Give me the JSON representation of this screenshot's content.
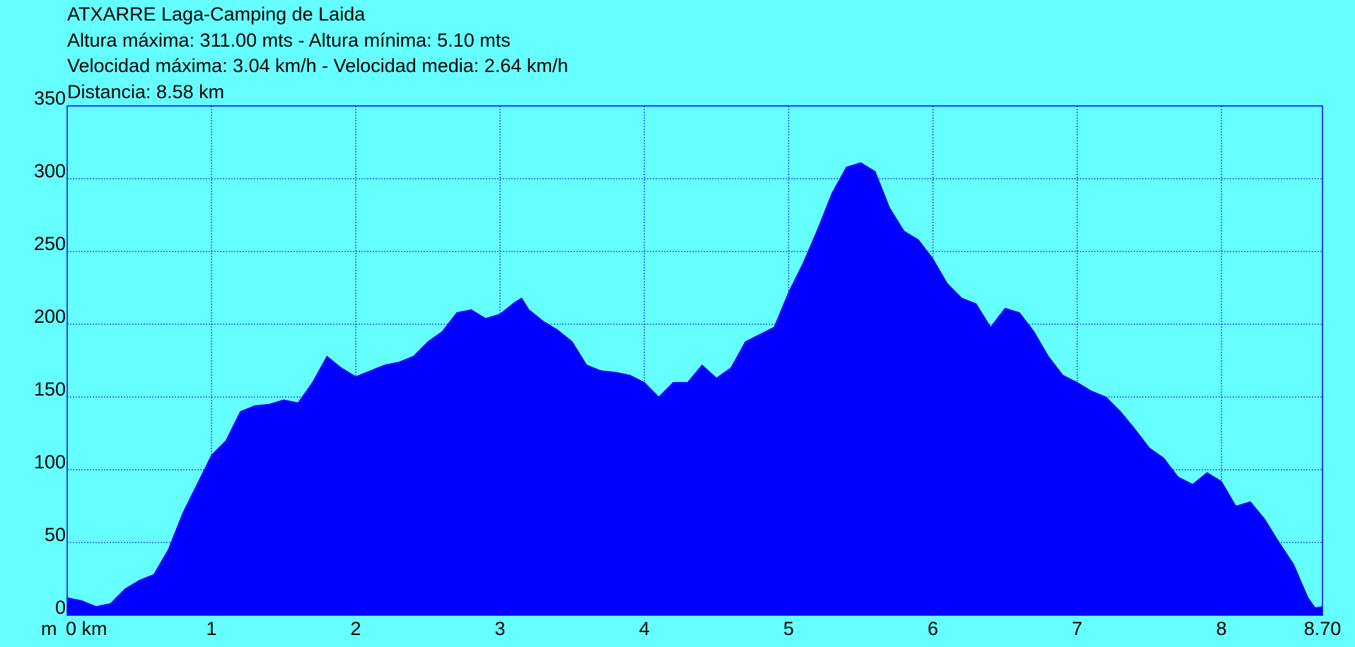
{
  "chart_data": {
    "type": "area",
    "title": "ATXARRE Laga-Camping de Laida",
    "subtitle": [
      "Altura máxima: 311.00 mts - Altura mínima: 5.10 mts",
      "Velocidad máxima: 3.04 km/h - Velocidad media: 2.64 km/h",
      "Distancia: 8.58 km"
    ],
    "ylabel": "m",
    "color": "#0000ff",
    "background": "#66ffff",
    "grid": true,
    "xlim": [
      0,
      8.7
    ],
    "xticks": [
      {
        "value": 0,
        "label": "0 km"
      },
      1,
      2,
      3,
      4,
      5,
      6,
      7,
      8,
      {
        "value": 8.7,
        "label": "8.70"
      }
    ],
    "ylim": [
      0,
      350
    ],
    "yticks": [
      0,
      50,
      100,
      150,
      200,
      250,
      300,
      350
    ],
    "x": [
      0,
      0.1,
      0.2,
      0.3,
      0.4,
      0.5,
      0.6,
      0.7,
      0.8,
      0.9,
      1.0,
      1.1,
      1.2,
      1.3,
      1.4,
      1.5,
      1.6,
      1.7,
      1.8,
      1.9,
      2.0,
      2.1,
      2.2,
      2.3,
      2.4,
      2.5,
      2.6,
      2.7,
      2.8,
      2.9,
      3.0,
      3.1,
      3.15,
      3.2,
      3.3,
      3.4,
      3.5,
      3.6,
      3.7,
      3.8,
      3.9,
      4.0,
      4.1,
      4.2,
      4.3,
      4.4,
      4.5,
      4.6,
      4.7,
      4.8,
      4.9,
      5.0,
      5.1,
      5.2,
      5.3,
      5.4,
      5.5,
      5.6,
      5.7,
      5.8,
      5.9,
      6.0,
      6.1,
      6.2,
      6.3,
      6.4,
      6.5,
      6.6,
      6.7,
      6.8,
      6.9,
      7.0,
      7.1,
      7.2,
      7.3,
      7.4,
      7.5,
      7.6,
      7.7,
      7.8,
      7.9,
      8.0,
      8.1,
      8.2,
      8.3,
      8.4,
      8.5,
      8.6,
      8.65,
      8.7
    ],
    "values": [
      12,
      10,
      6,
      8,
      18,
      24,
      28,
      45,
      70,
      90,
      110,
      120,
      140,
      144,
      145,
      148,
      146,
      160,
      178,
      170,
      164,
      168,
      172,
      174,
      178,
      188,
      195,
      208,
      210,
      204,
      207,
      215,
      218,
      210,
      202,
      196,
      188,
      172,
      168,
      167,
      165,
      160,
      150,
      160,
      160,
      172,
      163,
      170,
      188,
      193,
      198,
      222,
      242,
      265,
      290,
      308,
      311,
      305,
      280,
      264,
      258,
      245,
      228,
      218,
      214,
      198,
      211,
      208,
      195,
      178,
      165,
      160,
      154,
      150,
      140,
      128,
      115,
      108,
      95,
      90,
      98,
      92,
      75,
      78,
      66,
      50,
      35,
      12,
      5.1,
      6
    ]
  }
}
